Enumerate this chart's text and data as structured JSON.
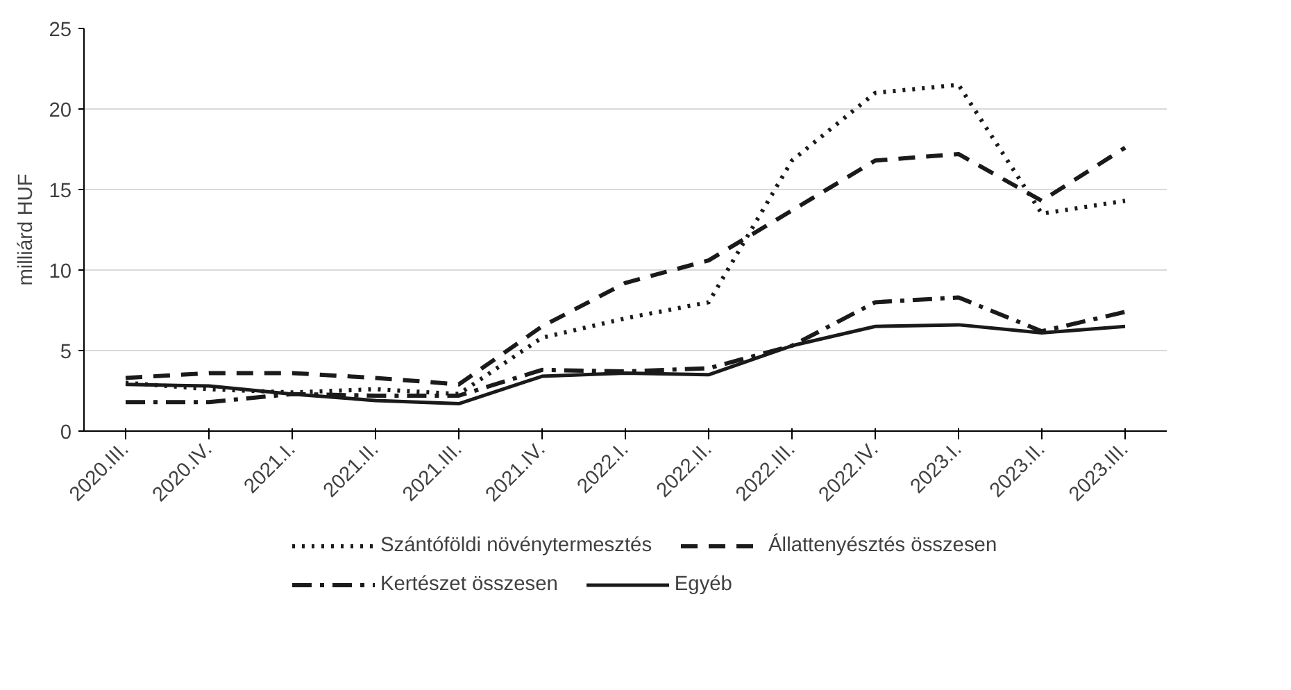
{
  "chart_data": {
    "type": "line",
    "ylabel": "milliárd HUF",
    "categories": [
      "2020.III.",
      "2020.IV.",
      "2021.I.",
      "2021.II.",
      "2021.III.",
      "2021.IV.",
      "2022.I.",
      "2022.II.",
      "2022.III.",
      "2022.IV.",
      "2023.I.",
      "2023.II.",
      "2023.III."
    ],
    "series": [
      {
        "name": "Szántóföldi növénytermesztés",
        "color": "#1a1a1a",
        "line_style": "dotted",
        "values": [
          3.0,
          2.6,
          2.4,
          2.6,
          2.3,
          5.8,
          7.0,
          8.0,
          16.8,
          21.0,
          21.5,
          13.5,
          14.3
        ]
      },
      {
        "name": "Állattenyésztés összesen",
        "color": "#1a1a1a",
        "line_style": "dashed",
        "values": [
          3.3,
          3.6,
          3.6,
          3.3,
          2.9,
          6.5,
          9.2,
          10.6,
          13.7,
          16.8,
          17.2,
          14.3,
          17.6
        ]
      },
      {
        "name": "Kertészet összesen",
        "color": "#1a1a1a",
        "line_style": "dashdot",
        "values": [
          1.8,
          1.8,
          2.3,
          2.2,
          2.2,
          3.8,
          3.7,
          3.9,
          5.3,
          8.0,
          8.3,
          6.2,
          7.4
        ]
      },
      {
        "name": "Egyéb",
        "color": "#1a1a1a",
        "line_style": "solid",
        "values": [
          2.9,
          2.8,
          2.3,
          1.9,
          1.7,
          3.4,
          3.6,
          3.5,
          5.3,
          6.5,
          6.6,
          6.1,
          6.5
        ]
      }
    ],
    "ylim": [
      0,
      25
    ],
    "yticks": [
      0,
      5,
      10,
      15,
      20,
      25
    ],
    "grid": "y",
    "legend": "bottom",
    "marker": "none"
  }
}
